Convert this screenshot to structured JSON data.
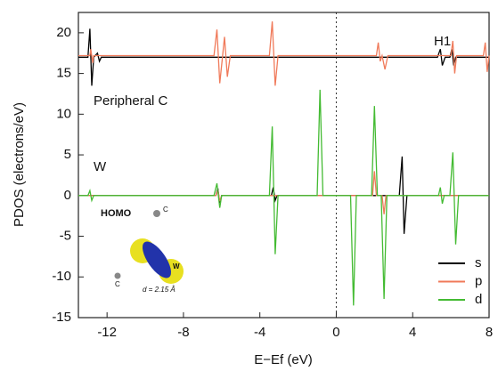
{
  "chart_data": {
    "type": "line",
    "x_label": "E−Ef (eV)",
    "y_label": "PDOS (electrons/eV)",
    "xlim": [
      -13.5,
      8
    ],
    "xticks": [
      -12,
      -8,
      -4,
      0,
      4,
      8
    ],
    "ylim": [
      -15,
      22.5
    ],
    "yticks": [
      -15,
      -10,
      -5,
      0,
      5,
      10,
      15,
      20
    ],
    "vline": 0,
    "legend": "lower right",
    "annotations": [
      "Peripheral C",
      "W",
      "H1"
    ],
    "inset_labels": [
      "HOMO",
      "C",
      "C",
      "W",
      "d = 2.15 Å"
    ],
    "series": [
      {
        "name": "s",
        "color": "#000000",
        "x": [
          -13.5,
          -13.0,
          -12.9,
          -12.8,
          -12.7,
          -12.5,
          -12.4,
          -12.3,
          5.3,
          5.45,
          5.55,
          5.7,
          5.95,
          6.05,
          6.15,
          6.25,
          8,
          null,
          -13.5,
          -6.3,
          -6.2,
          -6.1,
          -6.0,
          -3.4,
          -3.3,
          -3.2,
          -3.1,
          3.3,
          3.45,
          3.55,
          3.7,
          8
        ],
        "values": [
          17,
          17,
          20.5,
          13.5,
          17,
          17.5,
          16.5,
          17,
          17,
          18,
          16,
          17,
          17,
          18,
          16,
          17,
          17,
          null,
          0,
          0,
          0.9,
          -0.9,
          0,
          0,
          1,
          -0.6,
          0,
          0,
          4.8,
          -4.7,
          0,
          0
        ]
      },
      {
        "name": "p",
        "color": "#f07a5a",
        "x": [
          -13.5,
          -12.9,
          -12.85,
          -12.75,
          -12.7,
          -6.4,
          -6.25,
          -6.1,
          -5.95,
          -5.85,
          -5.7,
          -5.55,
          -3.5,
          -3.35,
          -3.2,
          -3.05,
          2.1,
          2.2,
          2.3,
          2.4,
          2.55,
          2.7,
          6.0,
          6.1,
          6.2,
          6.3,
          7.7,
          7.8,
          7.9,
          8,
          null,
          -13.5,
          -6.3,
          -6.2,
          -6.1,
          -6.0,
          1.9,
          2.0,
          2.1,
          2.4,
          2.5,
          2.6,
          8
        ],
        "values": [
          17.2,
          17.2,
          18,
          16.3,
          17.2,
          17.2,
          20.4,
          13.8,
          17.2,
          19.5,
          14.6,
          17.2,
          17.2,
          21.4,
          13.5,
          17.2,
          17.2,
          18.8,
          16.5,
          17.2,
          15.5,
          17.2,
          17.2,
          19,
          15,
          17.2,
          17.2,
          18.8,
          15.2,
          17.2,
          null,
          0,
          0,
          0.7,
          -0.7,
          0,
          0,
          3,
          0,
          0,
          -2.3,
          0,
          0
        ]
      },
      {
        "name": "d",
        "color": "#44bb33",
        "x": [
          -13.5,
          -13.0,
          -12.9,
          -12.8,
          -12.7,
          -6.4,
          -6.25,
          -6.1,
          -6.0,
          -3.5,
          -3.35,
          -3.2,
          -3.05,
          -1.0,
          -0.85,
          -0.7,
          0.75,
          0.9,
          1.05,
          1.85,
          2.0,
          2.15,
          2.35,
          2.5,
          2.65,
          5.35,
          5.45,
          5.55,
          5.65,
          5.95,
          6.1,
          6.25,
          6.4,
          8
        ],
        "values": [
          0,
          0,
          0.6,
          -0.6,
          0,
          0,
          1.5,
          -1.5,
          0,
          0,
          8.5,
          -7.2,
          0,
          0,
          13,
          0,
          0,
          -13.5,
          0,
          0,
          11,
          0,
          0,
          -12.7,
          0,
          0,
          1,
          -1,
          0,
          0,
          5.3,
          -6,
          0,
          0
        ]
      }
    ]
  }
}
